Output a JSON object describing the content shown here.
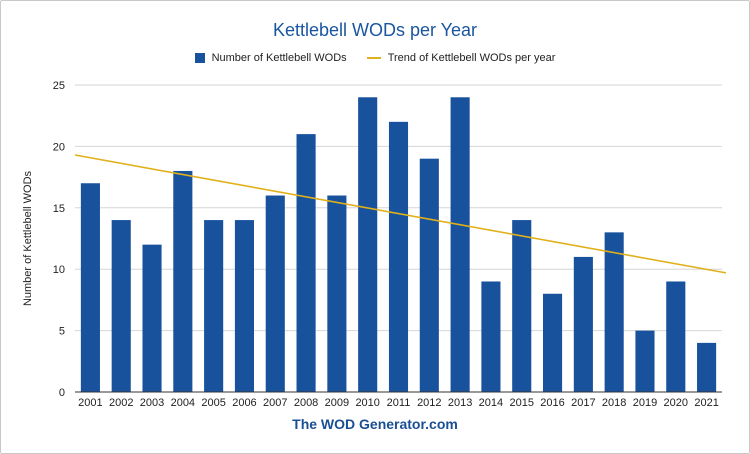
{
  "colors": {
    "bar": "#18519c",
    "trend": "#e0b11b",
    "title": "#1a56a0",
    "grid": "#d6d6d6",
    "footer": "#1a4f94"
  },
  "footer_text": "The WOD Generator.com",
  "chart_data": {
    "type": "bar",
    "title": "Kettlebell WODs per Year",
    "xlabel": "",
    "ylabel": "Number of Kettlebell WODs",
    "categories": [
      "2001",
      "2002",
      "2003",
      "2004",
      "2005",
      "2006",
      "2007",
      "2008",
      "2009",
      "2010",
      "2011",
      "2012",
      "2013",
      "2014",
      "2015",
      "2016",
      "2017",
      "2018",
      "2019",
      "2020",
      "2021"
    ],
    "series": [
      {
        "name": "Number of Kettlebell WODs",
        "values": [
          17,
          14,
          12,
          18,
          14,
          14,
          16,
          21,
          16,
          24,
          22,
          19,
          24,
          9,
          14,
          8,
          11,
          13,
          5,
          9,
          4
        ]
      }
    ],
    "trendline": {
      "name": "Trend of Kettlebell WODs per year",
      "start_value": 19.3,
      "end_value": 9.7
    },
    "ylim": [
      0,
      25
    ],
    "yticks": [
      0,
      5,
      10,
      15,
      20,
      25
    ],
    "grid": true,
    "legend_position": "top"
  }
}
